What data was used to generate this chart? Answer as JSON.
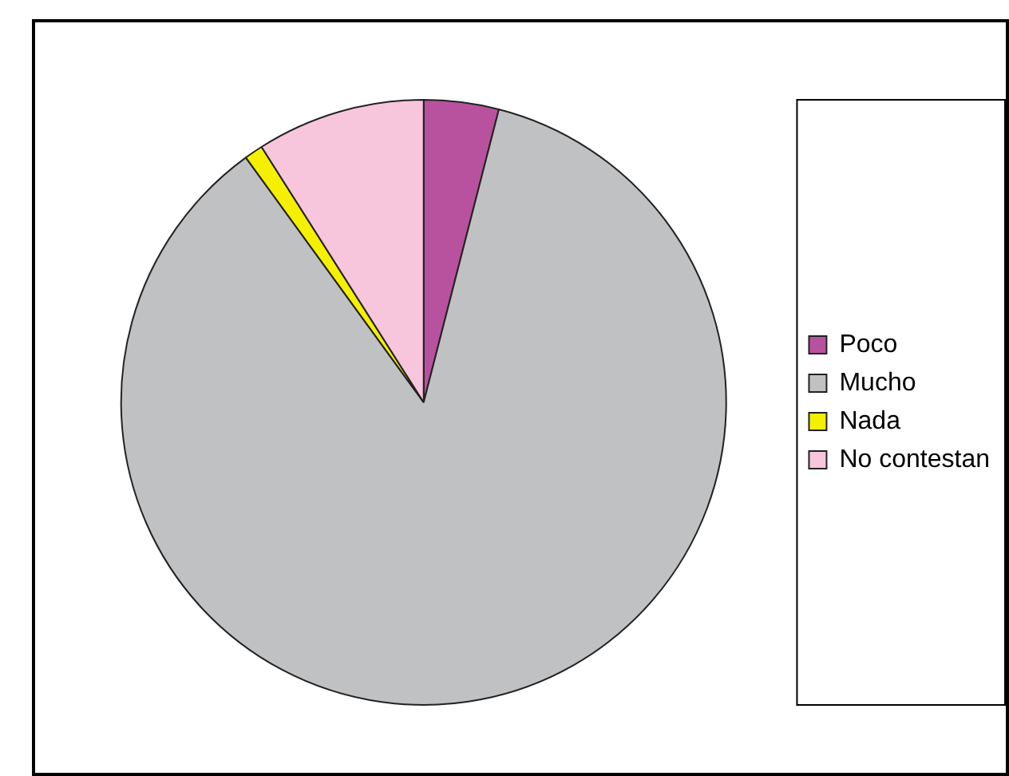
{
  "chart_data": {
    "type": "pie",
    "categories": [
      "Poco",
      "Mucho",
      "Nada",
      "No contestan"
    ],
    "values": [
      4,
      86,
      1,
      9
    ],
    "colors": [
      "#b8529f",
      "#c0c1c3",
      "#f5f000",
      "#f8c6dc"
    ],
    "legend": "right"
  }
}
